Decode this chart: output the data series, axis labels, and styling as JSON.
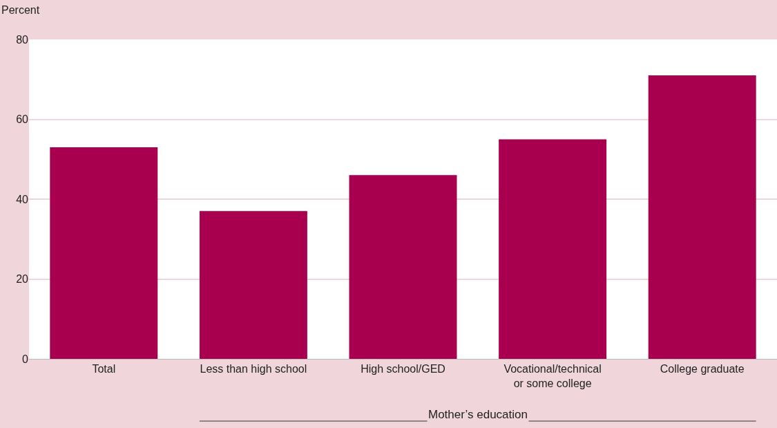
{
  "chart_data": {
    "type": "bar",
    "ylabel": "Percent",
    "xlabel": "Mother’s education",
    "categories": [
      "Total",
      "Less than high school",
      "High school/GED",
      "Vocational/technical or some college",
      "College graduate"
    ],
    "values": [
      53,
      37,
      46,
      55,
      71
    ],
    "color": "#a8004f",
    "ylim": [
      0,
      80
    ],
    "yticks": [
      0,
      20,
      40,
      60,
      80
    ],
    "grid": "y",
    "legend": false
  }
}
